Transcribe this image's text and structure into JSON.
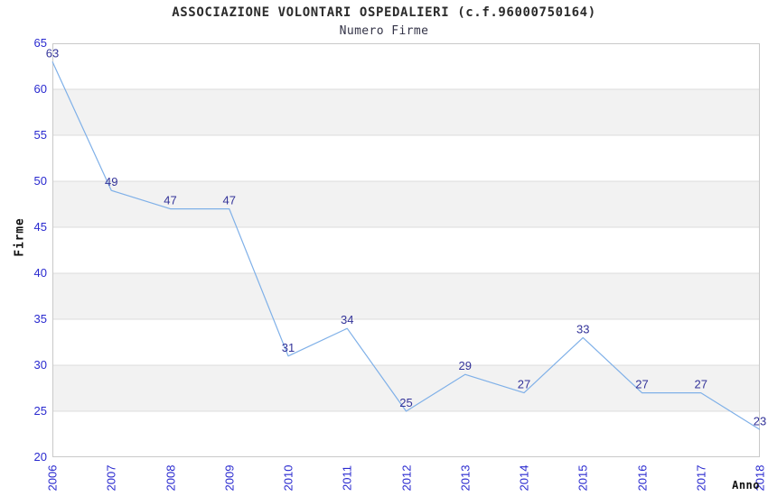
{
  "chart_data": {
    "type": "line",
    "title": "ASSOCIAZIONE VOLONTARI OSPEDALIERI (c.f.96000750164)",
    "subtitle": "Numero Firme",
    "xlabel": "Anno",
    "ylabel": "Firme",
    "categories": [
      "2006",
      "2007",
      "2008",
      "2009",
      "2010",
      "2011",
      "2012",
      "2013",
      "2014",
      "2015",
      "2016",
      "2017",
      "2018"
    ],
    "series": [
      {
        "name": "Numero Firme",
        "values": [
          63,
          49,
          47,
          47,
          31,
          34,
          25,
          29,
          27,
          33,
          27,
          27,
          23
        ]
      }
    ],
    "ylim": [
      20,
      65
    ],
    "ytick_step": 5,
    "yticks": [
      65,
      60,
      55,
      50,
      45,
      40,
      35,
      30,
      25,
      20
    ],
    "grid": "horizontal-only",
    "legend": "none",
    "point_labels_visible": true,
    "colors": {
      "line": "#7fb0e8",
      "point_label": "#333399",
      "tick_label": "#2929cf",
      "gridline": "#dcdcdc",
      "band_even": "#ffffff",
      "band_odd": "#f2f2f2",
      "plot_border": "#c9c9c9",
      "title": "#2b2b2b",
      "subtitle": "#333347"
    }
  }
}
